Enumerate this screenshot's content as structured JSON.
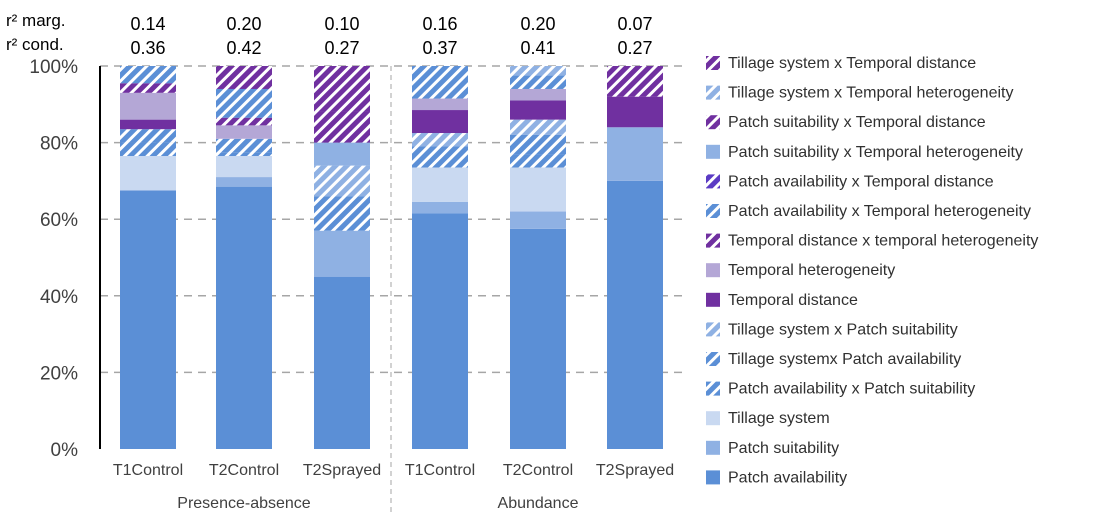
{
  "chart_data": {
    "type": "bar",
    "stacked": true,
    "y_axis": {
      "ticks": [
        "0%",
        "20%",
        "40%",
        "60%",
        "80%",
        "100%"
      ],
      "tick_values": [
        0,
        20,
        40,
        60,
        80,
        100
      ],
      "ylim": [
        0,
        100
      ],
      "grid": "dashed horizontal"
    },
    "groups": [
      {
        "label": "Presence-absence",
        "categories": [
          "T1Control",
          "T2Control",
          "T2Sprayed"
        ]
      },
      {
        "label": "Abundance",
        "categories": [
          "T1Control",
          "T2Control",
          "T2Sprayed"
        ]
      }
    ],
    "r2": {
      "marg_label": "r² marg.",
      "cond_label": "r² cond.",
      "marg": [
        "0.14",
        "0.20",
        "0.10",
        "0.16",
        "0.20",
        "0.07"
      ],
      "cond": [
        "0.36",
        "0.42",
        "0.27",
        "0.37",
        "0.41",
        "0.27"
      ]
    },
    "series": [
      {
        "name": "Patch availability",
        "color": "#5b8fd6",
        "pattern": "solid",
        "values": [
          67.5,
          68.5,
          45,
          61.5,
          57.5,
          70
        ]
      },
      {
        "name": "Patch suitability",
        "color": "#8fb1e3",
        "pattern": "solid",
        "values": [
          0,
          2.5,
          12,
          3,
          4.5,
          14
        ]
      },
      {
        "name": "Tillage system",
        "color": "#c9d9f1",
        "pattern": "solid",
        "values": [
          9,
          5.5,
          0,
          9,
          11.5,
          0
        ]
      },
      {
        "name": "Patch availability x Patch suitability",
        "color": "#5b8fd6",
        "pattern": "hatch",
        "values": [
          3.5,
          1,
          9,
          3,
          3.5,
          0
        ]
      },
      {
        "name": "Tillage systemx  Patch availability",
        "color": "#5b8fd6",
        "pattern": "hatch",
        "values": [
          3.5,
          3.5,
          0,
          2.5,
          5,
          0
        ]
      },
      {
        "name": "Tillage system x Patch suitability",
        "color": "#8fb1e3",
        "pattern": "hatch",
        "values": [
          0,
          0,
          8,
          3.5,
          4,
          0
        ]
      },
      {
        "name": "Temporal distance",
        "color": "#7030a0",
        "pattern": "solid",
        "values": [
          2.5,
          0,
          0,
          6,
          5,
          8
        ]
      },
      {
        "name": "Temporal heterogeneity",
        "color": "#b4a7d6",
        "pattern": "solid",
        "values": [
          7,
          3.5,
          0,
          3,
          3,
          0
        ]
      },
      {
        "name": "Temporal distance x temporal heterogeneity",
        "color": "#7030a0",
        "pattern": "hatch",
        "values": [
          2.5,
          2,
          0,
          0,
          0,
          0
        ]
      },
      {
        "name": "Patch availability x Temporal heterogeneity",
        "color": "#5b8fd6",
        "pattern": "hatch",
        "values": [
          4.5,
          7.5,
          0,
          8.5,
          3.5,
          0
        ]
      },
      {
        "name": "Patch availability x Temporal distance",
        "color": "#5b3bc4",
        "pattern": "hatch",
        "values": [
          0,
          0,
          0,
          0,
          0,
          0
        ]
      },
      {
        "name": "Patch suitability x Temporal heterogeneity",
        "color": "#8fb1e3",
        "pattern": "solid",
        "values": [
          0,
          0,
          6,
          0,
          0,
          0
        ]
      },
      {
        "name": "Patch suitability x Temporal distance",
        "color": "#7030a0",
        "pattern": "hatch",
        "values": [
          0,
          0,
          8,
          0,
          0,
          0
        ]
      },
      {
        "name": "Tillage system x Temporal heterogeneity",
        "color": "#8fb1e3",
        "pattern": "hatch",
        "values": [
          0,
          0,
          0,
          0,
          2.5,
          0
        ]
      },
      {
        "name": "Tillage system x Temporal distance",
        "color": "#7030a0",
        "pattern": "hatch",
        "values": [
          0,
          6,
          12,
          0,
          0,
          8
        ]
      }
    ],
    "legend_placement": "right"
  }
}
